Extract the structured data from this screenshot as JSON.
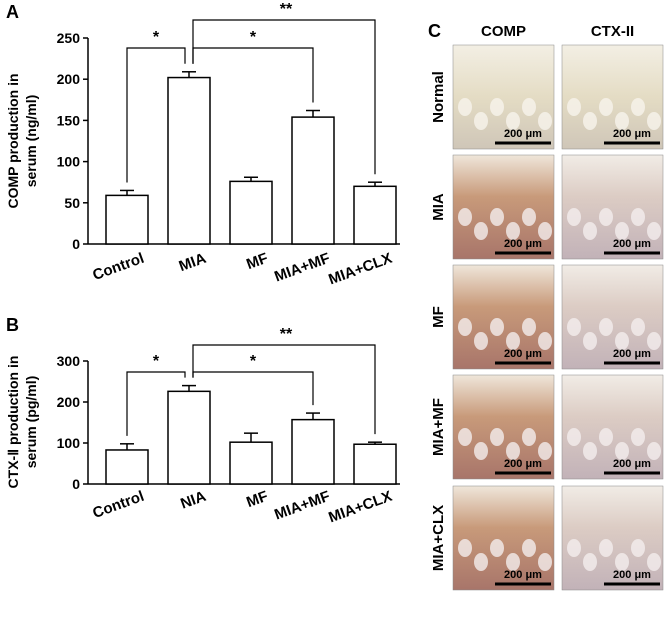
{
  "chart_data": [
    {
      "type": "bar",
      "panel_label": "A",
      "y_label": [
        "COMP production in",
        "serum (ng/ml)"
      ],
      "categories": [
        "Control",
        "MIA",
        "MF",
        "MIA+MF",
        "MIA+CLX"
      ],
      "values": [
        59,
        202,
        76,
        154,
        70
      ],
      "errors": [
        6,
        7,
        5,
        8,
        5
      ],
      "annotations": [
        "*",
        "*",
        "**"
      ],
      "ylim": [
        0,
        250
      ],
      "yticks": [
        0,
        50,
        100,
        150,
        200,
        250
      ],
      "color": "#ffffff"
    },
    {
      "type": "bar",
      "panel_label": "B",
      "y_label": [
        "CTX-Ⅱ production in",
        "serum (pg/ml)"
      ],
      "categories": [
        "Control",
        "NIA",
        "MF",
        "MIA+MF",
        "MIA+CLX"
      ],
      "values": [
        83,
        226,
        102,
        157,
        97
      ],
      "errors": [
        15,
        14,
        22,
        16,
        5
      ],
      "annotations": [
        "*",
        "*",
        "**"
      ],
      "ylim": [
        0,
        300
      ],
      "yticks": [
        0,
        100,
        200,
        300
      ],
      "color": "#ffffff"
    }
  ],
  "panel_c": {
    "label": "C",
    "columns": [
      "COMP",
      "CTX-II"
    ],
    "rows": [
      "Normal",
      "MIA",
      "MF",
      "MIA+MF",
      "MIA+CLX"
    ],
    "scale_bars": [
      [
        "200 μm",
        "200 μm"
      ],
      [
        "200 μm",
        "200 μm"
      ],
      [
        "200 μm",
        "200 μm"
      ],
      [
        "200 μm",
        "200 μm"
      ],
      [
        "200 μm",
        "200 μm"
      ]
    ]
  }
}
